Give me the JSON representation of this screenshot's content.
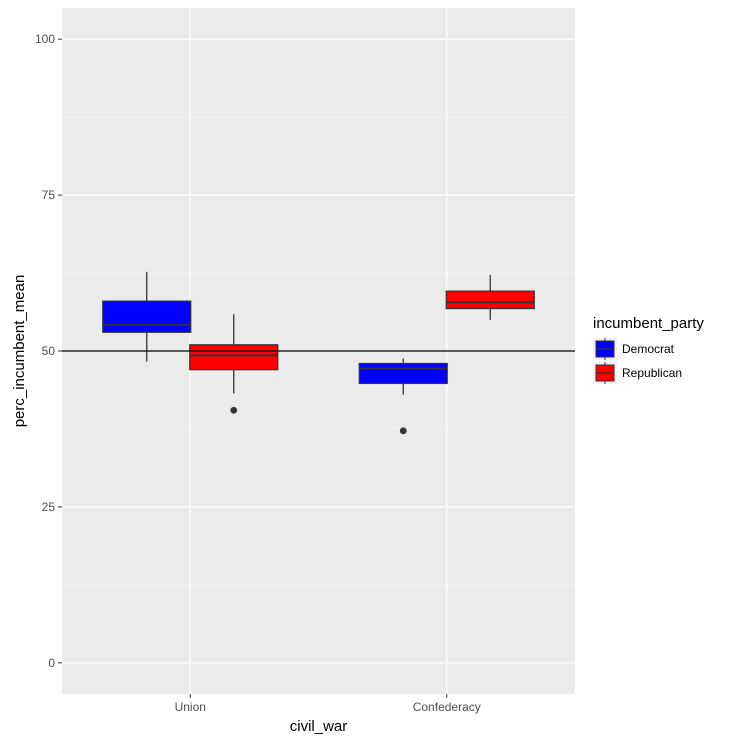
{
  "chart_data": {
    "type": "boxplot",
    "title": "",
    "xlabel": "civil_war",
    "ylabel": "perc_incumbent_mean",
    "categories": [
      "Union",
      "Confederacy"
    ],
    "ylim": [
      -5,
      105
    ],
    "yticks": [
      0,
      25,
      50,
      75,
      100
    ],
    "yticklabels": [
      "0",
      "25",
      "50",
      "75",
      "100"
    ],
    "hline": 50,
    "legend": {
      "title": "incumbent_party",
      "position": "right",
      "entries": [
        {
          "name": "Democrat",
          "color": "#0000ff"
        },
        {
          "name": "Republican",
          "color": "#ff0000"
        }
      ]
    },
    "series": [
      {
        "name": "Democrat",
        "color": "#0000ff",
        "boxes": [
          {
            "category": "Union",
            "whisker_low": 48.3,
            "q1": 53.0,
            "median": 54.2,
            "q3": 58.0,
            "whisker_high": 62.7,
            "outliers": []
          },
          {
            "category": "Confederacy",
            "whisker_low": 43.0,
            "q1": 44.8,
            "median": 47.2,
            "q3": 48.0,
            "whisker_high": 48.8,
            "outliers": [
              37.2
            ]
          }
        ]
      },
      {
        "name": "Republican",
        "color": "#ff0000",
        "boxes": [
          {
            "category": "Union",
            "whisker_low": 43.2,
            "q1": 47.0,
            "median": 49.3,
            "q3": 51.0,
            "whisker_high": 55.9,
            "outliers": [
              40.5
            ]
          },
          {
            "category": "Confederacy",
            "whisker_low": 55.0,
            "q1": 56.8,
            "median": 57.8,
            "q3": 59.6,
            "whisker_high": 62.2,
            "outliers": []
          }
        ]
      }
    ]
  }
}
